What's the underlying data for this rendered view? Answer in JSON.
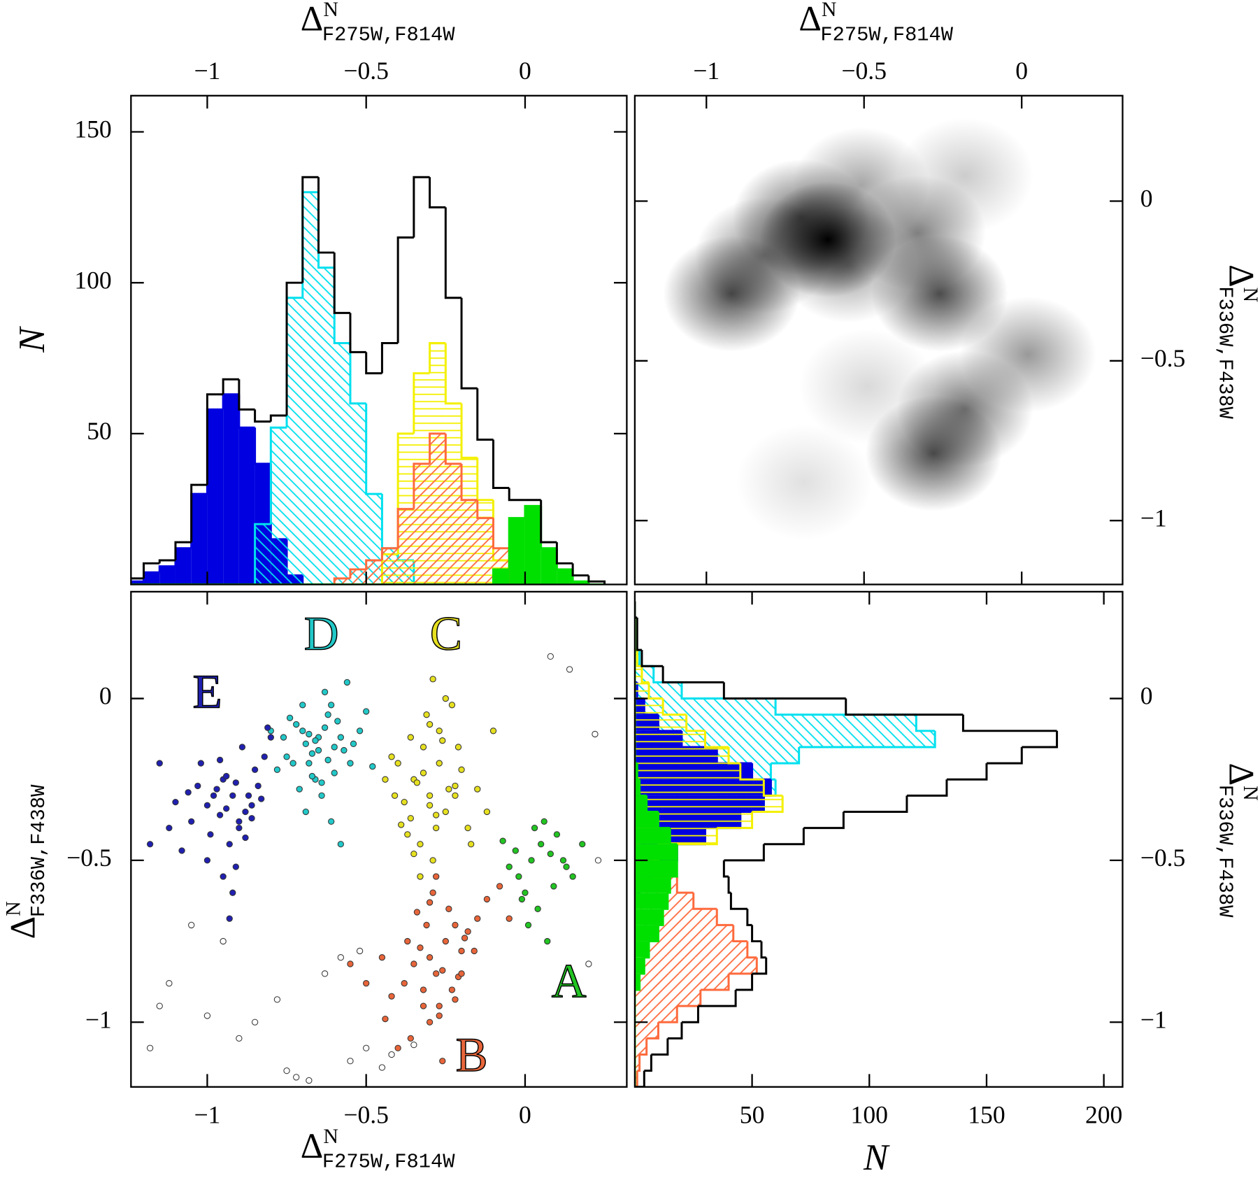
{
  "chart_data": [
    {
      "type": "histogram",
      "orientation": "vertical",
      "xaxis": "top",
      "yaxis": "left",
      "xlabel": {
        "symbol": "Δ",
        "sup": "N",
        "sub": "F275W,F814W"
      },
      "ylabel": "N",
      "xlim": [
        -1.24,
        0.32
      ],
      "ylim": [
        0,
        162
      ],
      "xticks": [
        {
          "value": -1,
          "label": "−1"
        },
        {
          "value": -0.5,
          "label": "−0.5"
        },
        0
      ],
      "yticks": [
        50,
        100,
        150
      ],
      "bins": [
        -1.25,
        -1.2,
        -1.15,
        -1.1,
        -1.05,
        -1,
        -0.95,
        -0.9,
        -0.85,
        -0.8,
        -0.75,
        -0.7,
        -0.65,
        -0.6,
        -0.55,
        -0.5,
        -0.45,
        -0.4,
        -0.35,
        -0.3,
        -0.25,
        -0.2,
        -0.15,
        -0.1,
        -0.05,
        0,
        0.05,
        0.1,
        0.15,
        0.2,
        0.25
      ],
      "series": [
        {
          "color": "#0000e0",
          "fill": "solid",
          "values": [
            1,
            4,
            6,
            12,
            30,
            58,
            63,
            52,
            40,
            15,
            3,
            0,
            0,
            0,
            0,
            0,
            0,
            0,
            0,
            0,
            0,
            0,
            0,
            0,
            0,
            0,
            0,
            0,
            0,
            0
          ]
        },
        {
          "color": "#00e0ee",
          "fill": "hatch-back",
          "values": [
            0,
            0,
            0,
            0,
            0,
            0,
            0,
            0,
            20,
            52,
            95,
            130,
            105,
            80,
            60,
            30,
            12,
            8,
            0,
            0,
            0,
            0,
            0,
            0,
            0,
            0,
            0,
            0,
            0,
            0
          ]
        },
        {
          "color": "#f4f000",
          "fill": "hlines",
          "values": [
            0,
            0,
            0,
            0,
            0,
            0,
            0,
            0,
            0,
            0,
            0,
            0,
            0,
            0,
            0,
            0,
            10,
            50,
            70,
            80,
            60,
            42,
            28,
            8,
            0,
            0,
            0,
            0,
            0,
            0
          ]
        },
        {
          "color": "#ff6a3d",
          "fill": "hatch",
          "values": [
            0,
            0,
            0,
            0,
            0,
            0,
            0,
            0,
            0,
            0,
            0,
            0,
            0,
            2,
            5,
            8,
            12,
            25,
            40,
            50,
            40,
            28,
            22,
            12,
            0,
            0,
            0,
            0,
            0,
            0
          ]
        },
        {
          "color": "#00e000",
          "fill": "solid",
          "values": [
            0,
            0,
            0,
            0,
            0,
            0,
            0,
            0,
            0,
            0,
            0,
            0,
            0,
            0,
            0,
            0,
            0,
            0,
            0,
            0,
            0,
            0,
            0,
            5,
            22,
            26,
            12,
            5,
            1,
            0
          ]
        },
        {
          "color": "#000000",
          "fill": "none",
          "values": [
            2,
            7,
            8,
            14,
            33,
            63,
            68,
            58,
            54,
            56,
            100,
            135,
            110,
            90,
            77,
            70,
            80,
            115,
            135,
            125,
            95,
            65,
            48,
            32,
            28,
            28,
            14,
            7,
            3,
            1
          ]
        }
      ]
    },
    {
      "type": "density",
      "xaxis": "top",
      "yaxis": "right",
      "xlabel": {
        "symbol": "Δ",
        "sup": "N",
        "sub": "F275W,F814W"
      },
      "ylabel": {
        "symbol": "Δ",
        "sup": "N",
        "sub": "F336W,F438W"
      },
      "xlim": [
        -1.227,
        0.32
      ],
      "ylim": [
        -1.2,
        0.33
      ],
      "xticks": [
        {
          "value": -1,
          "label": "−1"
        },
        {
          "value": -0.5,
          "label": "−0.5"
        },
        0
      ],
      "yticks": [
        {
          "value": -1,
          "label": "−1"
        },
        {
          "value": -0.5,
          "label": "−0.5"
        },
        0
      ],
      "color": "#000000",
      "x": [
        -0.615,
        -0.92,
        -0.26,
        -0.28,
        -0.18,
        0.02,
        -0.33,
        -0.82,
        -0.51,
        -0.18,
        -0.69,
        -0.49,
        -0.7,
        -0.55
      ],
      "y": [
        -0.12,
        -0.29,
        -0.29,
        -0.79,
        -0.65,
        -0.48,
        -0.1,
        -0.17,
        0.05,
        0.08,
        -0.88,
        -0.58,
        -0.05,
        -0.2
      ],
      "values": [
        1.0,
        0.7,
        0.7,
        0.7,
        0.55,
        0.4,
        0.5,
        0.5,
        0.35,
        0.2,
        0.12,
        0.15,
        0.6,
        0.4
      ]
    },
    {
      "type": "scatter",
      "xaxis": "bottom",
      "yaxis": "left",
      "xlabel": {
        "symbol": "Δ",
        "sup": "N",
        "sub": "F275W,F814W"
      },
      "ylabel": {
        "symbol": "Δ",
        "sup": "N",
        "sub": "F336W,F438W"
      },
      "xlim": [
        -1.24,
        0.32
      ],
      "ylim": [
        -1.2,
        0.33
      ],
      "xticks": [
        {
          "value": -1,
          "label": "−1"
        },
        {
          "value": -0.5,
          "label": "−0.5"
        },
        0
      ],
      "yticks": [
        {
          "value": -1,
          "label": "−1"
        },
        {
          "value": -0.5,
          "label": "−0.5"
        },
        0
      ],
      "edgecolor": "#333333",
      "series": [
        {
          "name": "A",
          "color": "#22c422",
          "x": [
            0.02,
            0.05,
            -0.02,
            0.08,
            0,
            0.1,
            -0.05,
            0.04,
            0.12,
            0.06,
            -0.03,
            0.15,
            0.01,
            0.09,
            -0.07,
            0.03,
            0.18,
            0.07,
            -0.01,
            0.13
          ],
          "y": [
            -0.5,
            -0.45,
            -0.55,
            -0.48,
            -0.6,
            -0.42,
            -0.52,
            -0.65,
            -0.5,
            -0.38,
            -0.47,
            -0.55,
            -0.7,
            -0.58,
            -0.44,
            -0.4,
            -0.45,
            -0.75,
            -0.62,
            -0.52
          ]
        },
        {
          "name": "B",
          "color": "#e8653a",
          "x": [
            -0.28,
            -0.3,
            -0.25,
            -0.32,
            -0.22,
            -0.35,
            -0.27,
            -0.2,
            -0.38,
            -0.24,
            -0.3,
            -0.18,
            -0.33,
            -0.26,
            -0.42,
            -0.15,
            -0.29,
            -0.36,
            -0.21,
            -0.45,
            -0.12,
            -0.31,
            -0.27,
            -0.5,
            -0.19,
            -0.34,
            -0.08,
            -0.23,
            -0.4,
            -0.28,
            -0.55,
            -0.16,
            -0.32,
            -0.05,
            -0.26,
            -0.37,
            -0.2,
            -0.3,
            -0.44,
            -0.22
          ],
          "y": [
            -0.85,
            -0.8,
            -0.75,
            -0.9,
            -0.7,
            -0.82,
            -0.95,
            -0.78,
            -0.88,
            -0.65,
            -1,
            -0.72,
            -0.77,
            -0.84,
            -0.92,
            -0.68,
            -0.6,
            -1.05,
            -0.86,
            -0.8,
            -0.62,
            -0.7,
            -0.98,
            -0.88,
            -0.74,
            -0.66,
            -0.58,
            -0.9,
            -1.08,
            -0.55,
            -0.82,
            -0.78,
            -0.95,
            -0.68,
            -1.12,
            -0.75,
            -0.85,
            -0.63,
            -0.99,
            -0.93
          ]
        },
        {
          "name": "C",
          "color": "#e6e020",
          "x": [
            -0.3,
            -0.35,
            -0.25,
            -0.32,
            -0.28,
            -0.4,
            -0.22,
            -0.33,
            -0.27,
            -0.38,
            -0.2,
            -0.31,
            -0.36,
            -0.24,
            -0.29,
            -0.42,
            -0.18,
            -0.34,
            -0.26,
            -0.3,
            -0.37,
            -0.23,
            -0.15,
            -0.32,
            -0.28,
            -0.41,
            -0.21,
            -0.35,
            -0.25,
            -0.12,
            -0.3,
            -0.39,
            -0.27,
            -0.1,
            -0.33,
            -0.22,
            -0.36,
            -0.29,
            -0.17,
            -0.44
          ],
          "y": [
            -0.3,
            -0.25,
            -0.35,
            -0.15,
            -0.4,
            -0.2,
            -0.3,
            -0.45,
            -0.1,
            -0.32,
            -0.22,
            -0.05,
            -0.37,
            -0.28,
            -0.5,
            -0.18,
            -0.4,
            -0.26,
            -0.13,
            -0.33,
            -0.42,
            -0.02,
            -0.28,
            -0.23,
            -0.36,
            -0.3,
            -0.15,
            -0.48,
            0,
            -0.35,
            -0.08,
            -0.39,
            -0.2,
            -0.1,
            -0.55,
            -0.27,
            -0.12,
            0.06,
            -0.45,
            -0.25
          ]
        },
        {
          "name": "D",
          "color": "#22c8c8",
          "x": [
            -0.65,
            -0.7,
            -0.6,
            -0.68,
            -0.62,
            -0.75,
            -0.58,
            -0.66,
            -0.72,
            -0.55,
            -0.64,
            -0.69,
            -0.61,
            -0.78,
            -0.52,
            -0.67,
            -0.63,
            -0.71,
            -0.57,
            -0.74,
            -0.6,
            -0.66,
            -0.5,
            -0.69,
            -0.62,
            -0.76,
            -0.59,
            -0.64,
            -0.7,
            -0.54,
            -0.68,
            -0.61,
            -0.73,
            -0.56,
            -0.65,
            -0.48,
            -0.8,
            -0.63,
            -0.67,
            -0.58
          ],
          "y": [
            -0.12,
            -0.1,
            -0.15,
            -0.2,
            -0.05,
            -0.18,
            -0.12,
            -0.25,
            -0.08,
            -0.2,
            -0.3,
            -0.14,
            -0.02,
            -0.22,
            -0.1,
            -0.17,
            -0.09,
            -0.28,
            -0.16,
            -0.06,
            -0.23,
            -0.13,
            -0.04,
            -0.35,
            -0.19,
            -0.12,
            -0.07,
            -0.26,
            -0.02,
            -0.14,
            -0.11,
            -0.38,
            -0.2,
            0.05,
            -0.16,
            -0.21,
            -0.1,
            0.02,
            -0.24,
            -0.45
          ]
        },
        {
          "name": "E",
          "color": "#2020b0",
          "x": [
            -0.92,
            -0.95,
            -0.88,
            -1,
            -0.85,
            -0.9,
            -0.97,
            -1.05,
            -0.82,
            -0.93,
            -0.87,
            -1.02,
            -0.91,
            -0.96,
            -0.84,
            -1.1,
            -0.89,
            -0.99,
            -0.86,
            -0.94,
            -1.08,
            -0.8,
            -0.92,
            -1.15,
            -0.98,
            -0.9,
            -1.03,
            -0.83,
            -0.95,
            -0.88,
            -1.12,
            -0.96,
            -0.91,
            -1,
            -0.86,
            -1.18,
            -0.94,
            -0.81,
            -1.06,
            -0.93
          ],
          "y": [
            -0.3,
            -0.25,
            -0.35,
            -0.33,
            -0.22,
            -0.4,
            -0.28,
            -0.38,
            -0.18,
            -0.45,
            -0.3,
            -0.2,
            -0.52,
            -0.36,
            -0.27,
            -0.32,
            -0.15,
            -0.42,
            -0.33,
            -0.24,
            -0.47,
            -0.12,
            -0.6,
            -0.2,
            -0.3,
            -0.38,
            -0.27,
            -0.31,
            -0.55,
            -0.43,
            -0.4,
            -0.19,
            -0.26,
            -0.5,
            -0.37,
            -0.45,
            -0.34,
            -0.09,
            -0.29,
            -0.68
          ]
        },
        {
          "color": "#ffffff",
          "x": [
            -1.12,
            -1.18,
            -1,
            -0.95,
            -0.9,
            -0.75,
            -0.72,
            -0.55,
            -0.5,
            -0.45,
            -0.52,
            -0.63,
            -0.78,
            0.14,
            0.2,
            0.22,
            0.08,
            -1.05,
            -0.68,
            -0.42,
            -1.15,
            -0.85,
            -0.58,
            -0.35,
            0.23
          ],
          "y": [
            -0.88,
            -1.08,
            -0.98,
            -0.75,
            -1.05,
            -1.15,
            -1.17,
            -1.12,
            -1.08,
            -1.14,
            -0.78,
            -0.85,
            -0.93,
            0.09,
            -0.82,
            -0.11,
            0.13,
            -0.7,
            -1.18,
            -1.1,
            -0.95,
            -1,
            -0.8,
            -1.07,
            -0.5
          ]
        }
      ]
    },
    {
      "type": "histogram",
      "orientation": "horizontal",
      "xaxis": "bottom",
      "yaxis": "right",
      "xlabel": "N",
      "ylabel": {
        "symbol": "Δ",
        "sup": "N",
        "sub": "F336W,F438W"
      },
      "xlim": [
        0,
        208
      ],
      "ylim": [
        -1.2,
        0.33
      ],
      "xticks": [
        50,
        100,
        150,
        200
      ],
      "yticks": [
        {
          "value": -1,
          "label": "−1"
        },
        {
          "value": -0.5,
          "label": "−0.5"
        },
        0
      ],
      "bins": [
        -1.2,
        -1.15,
        -1.1,
        -1.05,
        -1,
        -0.95,
        -0.9,
        -0.85,
        -0.8,
        -0.75,
        -0.7,
        -0.65,
        -0.6,
        -0.55,
        -0.5,
        -0.45,
        -0.4,
        -0.35,
        -0.3,
        -0.25,
        -0.2,
        -0.15,
        -0.1,
        -0.05,
        0,
        0.05,
        0.1,
        0.15,
        0.2,
        0.25,
        0.3
      ],
      "series": [
        {
          "color": "#00e0ee",
          "fill": "hatch-back",
          "values": [
            0,
            0,
            0,
            0,
            0,
            0,
            0,
            0,
            0,
            0,
            0,
            0,
            0,
            0,
            10,
            25,
            40,
            55,
            60,
            58,
            70,
            128,
            120,
            60,
            20,
            8,
            2,
            0,
            0,
            0
          ]
        },
        {
          "color": "#0000e0",
          "fill": "solid",
          "values": [
            0,
            0,
            0,
            0,
            0,
            0,
            0,
            0,
            0,
            0,
            0,
            0,
            2,
            8,
            18,
            30,
            45,
            55,
            58,
            50,
            35,
            20,
            10,
            4,
            1,
            0,
            0,
            0,
            0,
            0
          ]
        },
        {
          "color": "#f4f000",
          "fill": "hlines",
          "values": [
            0,
            0,
            0,
            0,
            0,
            0,
            0,
            0,
            0,
            0,
            0,
            0,
            0,
            0,
            10,
            35,
            50,
            63,
            55,
            45,
            40,
            30,
            22,
            12,
            6,
            3,
            1,
            0,
            0,
            0
          ]
        },
        {
          "color": "#ff6a3d",
          "fill": "hatch",
          "values": [
            1,
            2,
            5,
            10,
            18,
            28,
            40,
            52,
            48,
            42,
            35,
            25,
            18,
            8,
            2,
            0,
            0,
            0,
            0,
            0,
            0,
            0,
            0,
            0,
            0,
            0,
            0,
            0,
            0,
            0
          ]
        },
        {
          "color": "#00e000",
          "fill": "solid",
          "values": [
            0,
            0,
            0,
            0,
            0,
            0,
            2,
            4,
            6,
            10,
            12,
            14,
            15,
            18,
            18,
            15,
            10,
            5,
            2,
            1,
            0,
            0,
            0,
            0,
            0,
            0,
            0,
            0,
            0,
            0
          ]
        },
        {
          "color": "#000000",
          "fill": "none",
          "values": [
            4,
            7,
            14,
            20,
            27,
            43,
            50,
            56,
            54,
            50,
            48,
            41,
            40,
            38,
            55,
            72,
            89,
            116,
            133,
            150,
            165,
            180,
            140,
            90,
            38,
            12,
            3,
            1,
            1,
            0
          ]
        }
      ]
    }
  ]
}
